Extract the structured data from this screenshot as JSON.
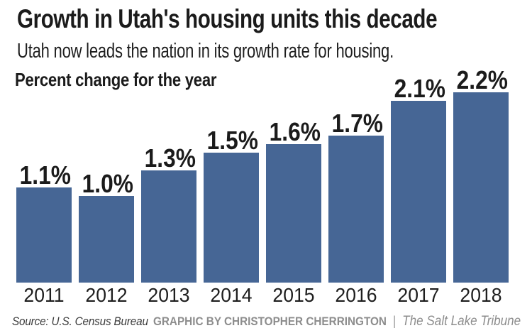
{
  "header": {
    "title": "Growth in Utah's housing units this decade",
    "subtitle": "Utah now leads the nation in its growth rate for housing."
  },
  "chart_data": {
    "type": "bar",
    "title": "Percent change for the year",
    "categories": [
      "2011",
      "2012",
      "2013",
      "2014",
      "2015",
      "2016",
      "2017",
      "2018"
    ],
    "values": [
      1.1,
      1.0,
      1.3,
      1.5,
      1.6,
      1.7,
      2.1,
      2.2
    ],
    "value_labels": [
      "1.1%",
      "1.0%",
      "1.3%",
      "1.5%",
      "1.6%",
      "1.7%",
      "2.1%",
      "2.2%"
    ],
    "xlabel": "",
    "ylabel": "Percent change",
    "ylim": [
      0,
      2.2
    ],
    "grid": "off",
    "legend": "none",
    "bar_color": "#466695",
    "label_color": "#1b1b1b"
  },
  "footer": {
    "source": "Source: U.S. Census Bureau",
    "credit": "GRAPHIC BY CHRISTOPHER CHERRINGTON",
    "separator": "|",
    "publication": "The Salt Lake Tribune"
  }
}
